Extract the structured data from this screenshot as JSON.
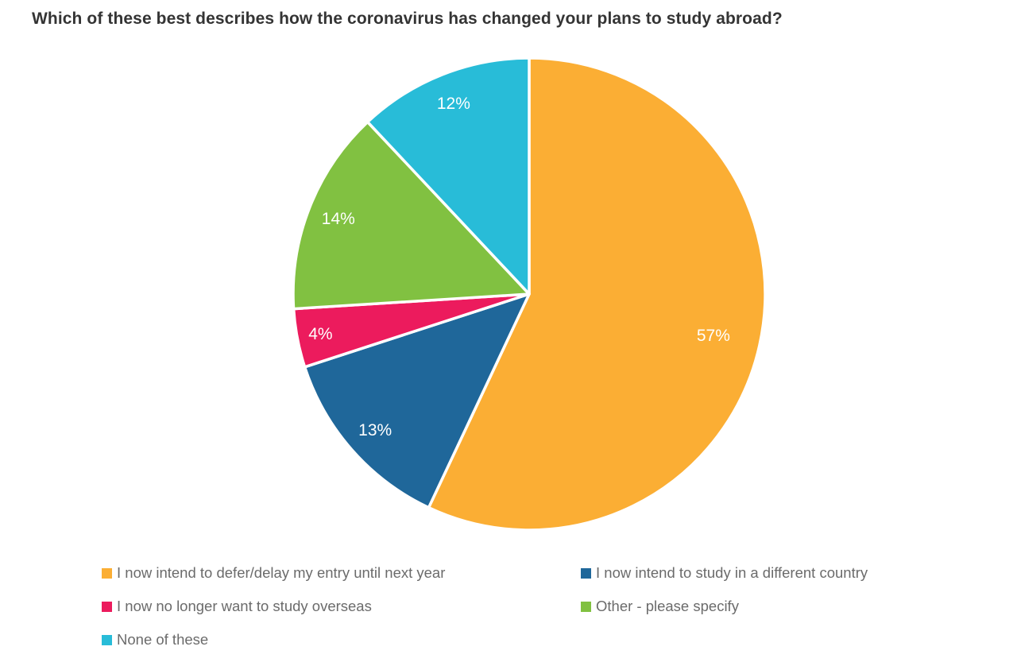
{
  "title": "Which of these best describes how the coronavirus has changed your plans to study abroad?",
  "chart_data": {
    "type": "pie",
    "title": "Which of these best describes how the coronavirus has changed your plans to study abroad?",
    "unit": "%",
    "total": 100,
    "legend_position": "bottom",
    "legend_columns": 2,
    "start_angle_deg": 0,
    "direction": "clockwise",
    "series": [
      {
        "label": "I now intend to defer/delay my entry until next year",
        "value": 57,
        "pct_label": "57%",
        "color": "#FBAE34"
      },
      {
        "label": "I now intend to study in a different country",
        "value": 13,
        "pct_label": "13%",
        "color": "#1F679A"
      },
      {
        "label": "I now no longer want to study overseas",
        "value": 4,
        "pct_label": "4%",
        "color": "#EC1B5D"
      },
      {
        "label": "Other - please specify",
        "value": 14,
        "pct_label": "14%",
        "color": "#81C141"
      },
      {
        "label": "None of these",
        "value": 12,
        "pct_label": "12%",
        "color": "#28BCD8"
      }
    ],
    "slice_label_color": "#FFFFFF",
    "background_color": "#FFFFFF",
    "title_color": "#343434",
    "legend_text_color": "#6B6B6B"
  }
}
